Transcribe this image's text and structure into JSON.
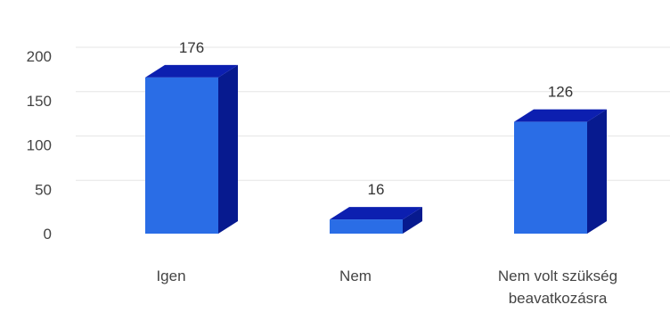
{
  "chart_data": {
    "type": "bar",
    "style": "3d",
    "categories": [
      [
        "Igen"
      ],
      [
        "Nem"
      ],
      [
        "Nem volt szükség",
        "beavatkozásra"
      ]
    ],
    "values": [
      176,
      16,
      126
    ],
    "value_labels": [
      "176",
      "16",
      "126"
    ],
    "title": "",
    "xlabel": "",
    "ylabel": "",
    "ylim": [
      0,
      200
    ],
    "yticks": [
      "0",
      "50",
      "100",
      "150",
      "200"
    ],
    "grid": true,
    "legend": "none",
    "colors": {
      "front": "#2a6de6",
      "top": "#0c1fb0",
      "side": "#071a8f",
      "grid": "#e6e6e6",
      "text": "#444444"
    }
  }
}
